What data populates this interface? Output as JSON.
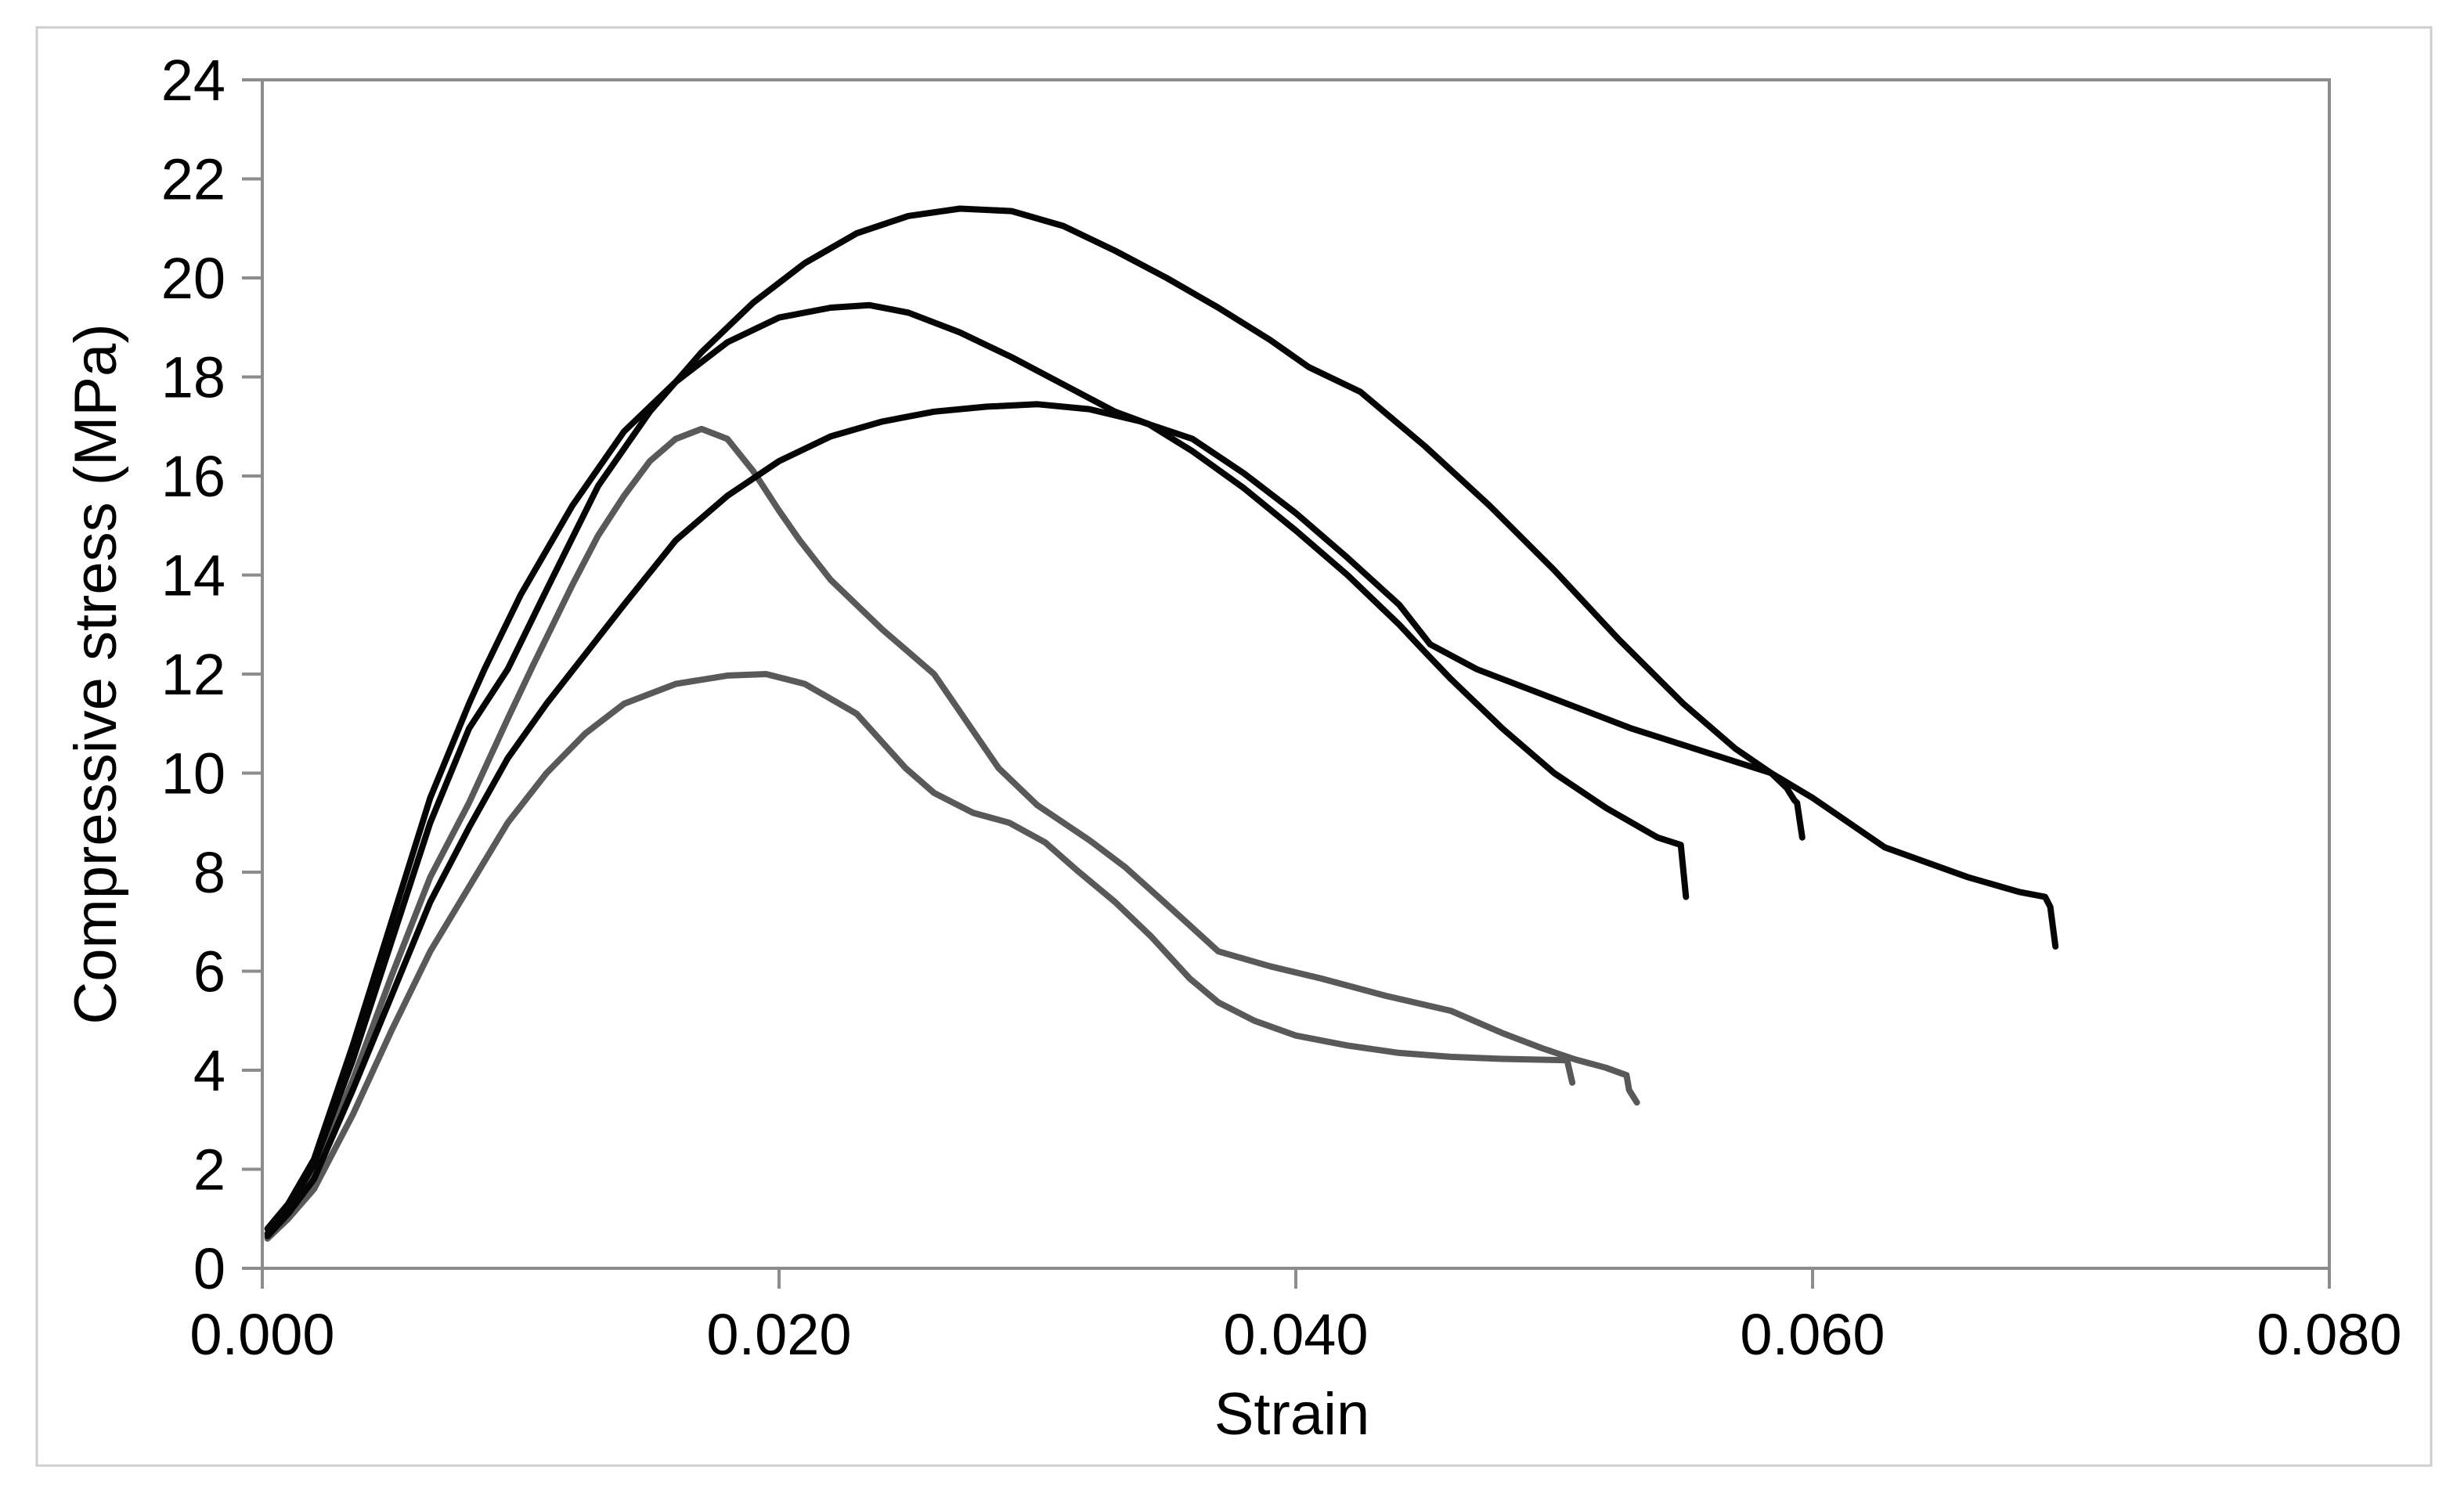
{
  "figure": {
    "background": "#ffffff",
    "border_color": "#cfcfcf",
    "axis_color": "#8c8c8c",
    "tick_color": "#8c8c8c",
    "text_color": "#000000",
    "series_black_color": "#050505",
    "series_gray_color": "#595959"
  },
  "chart_data": {
    "type": "line",
    "title": "",
    "xlabel": "Strain",
    "ylabel": "Compressive stress (MPa)",
    "xlim": [
      0.0,
      0.08
    ],
    "ylim": [
      0,
      24
    ],
    "grid": false,
    "legend": "none",
    "x_ticks": [
      {
        "v": 0.0,
        "label": "0.000"
      },
      {
        "v": 0.02,
        "label": "0.020"
      },
      {
        "v": 0.04,
        "label": "0.040"
      },
      {
        "v": 0.06,
        "label": "0.060"
      },
      {
        "v": 0.08,
        "label": "0.080"
      }
    ],
    "y_ticks": [
      {
        "v": 0,
        "label": "0"
      },
      {
        "v": 2,
        "label": "2"
      },
      {
        "v": 4,
        "label": "4"
      },
      {
        "v": 6,
        "label": "6"
      },
      {
        "v": 8,
        "label": "8"
      },
      {
        "v": 10,
        "label": "10"
      },
      {
        "v": 12,
        "label": "12"
      },
      {
        "v": 14,
        "label": "14"
      },
      {
        "v": 16,
        "label": "16"
      },
      {
        "v": 18,
        "label": "18"
      },
      {
        "v": 20,
        "label": "20"
      },
      {
        "v": 22,
        "label": "22"
      },
      {
        "v": 24,
        "label": "24"
      }
    ],
    "series": [
      {
        "id": "gray-1",
        "label": "gray curve (peak 16.9 MPa)",
        "color": "#595959",
        "points": [
          [
            0.0002,
            0.7
          ],
          [
            0.001,
            1.1
          ],
          [
            0.002,
            1.9
          ],
          [
            0.0035,
            3.8
          ],
          [
            0.005,
            5.9
          ],
          [
            0.0065,
            7.9
          ],
          [
            0.008,
            9.4
          ],
          [
            0.0095,
            11.1
          ],
          [
            0.0105,
            12.2
          ],
          [
            0.012,
            13.8
          ],
          [
            0.013,
            14.8
          ],
          [
            0.014,
            15.6
          ],
          [
            0.015,
            16.3
          ],
          [
            0.016,
            16.75
          ],
          [
            0.017,
            16.95
          ],
          [
            0.018,
            16.75
          ],
          [
            0.019,
            16.1
          ],
          [
            0.02,
            15.3
          ],
          [
            0.0208,
            14.7
          ],
          [
            0.022,
            13.9
          ],
          [
            0.024,
            12.9
          ],
          [
            0.026,
            12.0
          ],
          [
            0.0285,
            10.1
          ],
          [
            0.03,
            9.35
          ],
          [
            0.032,
            8.65
          ],
          [
            0.0334,
            8.1
          ],
          [
            0.035,
            7.35
          ],
          [
            0.037,
            6.4
          ],
          [
            0.039,
            6.1
          ],
          [
            0.041,
            5.85
          ],
          [
            0.0435,
            5.5
          ],
          [
            0.046,
            5.2
          ],
          [
            0.048,
            4.75
          ],
          [
            0.0495,
            4.45
          ],
          [
            0.0508,
            4.22
          ],
          [
            0.052,
            4.05
          ],
          [
            0.0528,
            3.9
          ],
          [
            0.0529,
            3.6
          ],
          [
            0.0532,
            3.35
          ]
        ]
      },
      {
        "id": "gray-2",
        "label": "gray curve (peak 12.0 MPa)",
        "color": "#595959",
        "points": [
          [
            0.0002,
            0.6
          ],
          [
            0.001,
            1.0
          ],
          [
            0.002,
            1.6
          ],
          [
            0.0035,
            3.1
          ],
          [
            0.005,
            4.8
          ],
          [
            0.0065,
            6.4
          ],
          [
            0.008,
            7.7
          ],
          [
            0.0095,
            9.0
          ],
          [
            0.011,
            10.0
          ],
          [
            0.0125,
            10.8
          ],
          [
            0.014,
            11.4
          ],
          [
            0.016,
            11.8
          ],
          [
            0.018,
            11.97
          ],
          [
            0.0195,
            12.0
          ],
          [
            0.021,
            11.8
          ],
          [
            0.023,
            11.2
          ],
          [
            0.0249,
            10.1
          ],
          [
            0.026,
            9.6
          ],
          [
            0.0275,
            9.2
          ],
          [
            0.0289,
            9.0
          ],
          [
            0.0303,
            8.6
          ],
          [
            0.0315,
            8.05
          ],
          [
            0.033,
            7.4
          ],
          [
            0.0344,
            6.7
          ],
          [
            0.0359,
            5.85
          ],
          [
            0.037,
            5.37
          ],
          [
            0.0384,
            5.0
          ],
          [
            0.04,
            4.7
          ],
          [
            0.042,
            4.5
          ],
          [
            0.044,
            4.35
          ],
          [
            0.046,
            4.27
          ],
          [
            0.048,
            4.23
          ],
          [
            0.0505,
            4.2
          ],
          [
            0.0507,
            3.75
          ]
        ]
      },
      {
        "id": "black-3",
        "label": "black curve (peak 17.4 MPa)",
        "color": "#050505",
        "points": [
          [
            0.0002,
            0.65
          ],
          [
            0.001,
            1.1
          ],
          [
            0.002,
            1.8
          ],
          [
            0.0035,
            3.6
          ],
          [
            0.005,
            5.5
          ],
          [
            0.0065,
            7.4
          ],
          [
            0.008,
            8.9
          ],
          [
            0.0095,
            10.3
          ],
          [
            0.011,
            11.4
          ],
          [
            0.0125,
            12.4
          ],
          [
            0.014,
            13.4
          ],
          [
            0.016,
            14.7
          ],
          [
            0.018,
            15.6
          ],
          [
            0.02,
            16.3
          ],
          [
            0.022,
            16.8
          ],
          [
            0.024,
            17.1
          ],
          [
            0.026,
            17.3
          ],
          [
            0.028,
            17.4
          ],
          [
            0.03,
            17.45
          ],
          [
            0.032,
            17.35
          ],
          [
            0.034,
            17.1
          ],
          [
            0.036,
            16.75
          ],
          [
            0.038,
            16.05
          ],
          [
            0.04,
            15.25
          ],
          [
            0.042,
            14.35
          ],
          [
            0.044,
            13.4
          ],
          [
            0.0452,
            12.6
          ],
          [
            0.047,
            12.1
          ],
          [
            0.05,
            11.5
          ],
          [
            0.053,
            10.9
          ],
          [
            0.056,
            10.4
          ],
          [
            0.0584,
            10.0
          ],
          [
            0.06,
            9.5
          ],
          [
            0.0628,
            8.5
          ],
          [
            0.066,
            7.9
          ],
          [
            0.068,
            7.6
          ],
          [
            0.069,
            7.5
          ],
          [
            0.0692,
            7.3
          ],
          [
            0.0694,
            6.5
          ]
        ]
      },
      {
        "id": "black-2",
        "label": "black curve (peak 19.4 MPa)",
        "color": "#050505",
        "points": [
          [
            0.0002,
            0.8
          ],
          [
            0.001,
            1.3
          ],
          [
            0.002,
            2.2
          ],
          [
            0.0035,
            4.5
          ],
          [
            0.005,
            7.0
          ],
          [
            0.0065,
            9.5
          ],
          [
            0.008,
            11.4
          ],
          [
            0.0086,
            12.1
          ],
          [
            0.01,
            13.6
          ],
          [
            0.012,
            15.4
          ],
          [
            0.014,
            16.9
          ],
          [
            0.016,
            17.9
          ],
          [
            0.018,
            18.7
          ],
          [
            0.02,
            19.2
          ],
          [
            0.022,
            19.4
          ],
          [
            0.0235,
            19.45
          ],
          [
            0.025,
            19.3
          ],
          [
            0.027,
            18.9
          ],
          [
            0.029,
            18.4
          ],
          [
            0.031,
            17.85
          ],
          [
            0.033,
            17.3
          ],
          [
            0.0343,
            17.05
          ],
          [
            0.036,
            16.5
          ],
          [
            0.038,
            15.75
          ],
          [
            0.04,
            14.9
          ],
          [
            0.042,
            14.0
          ],
          [
            0.044,
            13.0
          ],
          [
            0.0449,
            12.5
          ],
          [
            0.046,
            11.9
          ],
          [
            0.048,
            10.9
          ],
          [
            0.05,
            10.0
          ],
          [
            0.052,
            9.3
          ],
          [
            0.054,
            8.7
          ],
          [
            0.0549,
            8.55
          ],
          [
            0.0551,
            7.5
          ]
        ]
      },
      {
        "id": "black-1",
        "label": "black curve (peak 21.4 MPa)",
        "color": "#050505",
        "points": [
          [
            0.0002,
            0.7
          ],
          [
            0.001,
            1.2
          ],
          [
            0.002,
            2.1
          ],
          [
            0.0035,
            4.2
          ],
          [
            0.005,
            6.6
          ],
          [
            0.0065,
            9.0
          ],
          [
            0.008,
            10.9
          ],
          [
            0.0095,
            12.1
          ],
          [
            0.011,
            13.7
          ],
          [
            0.013,
            15.8
          ],
          [
            0.015,
            17.3
          ],
          [
            0.017,
            18.5
          ],
          [
            0.019,
            19.5
          ],
          [
            0.021,
            20.3
          ],
          [
            0.023,
            20.9
          ],
          [
            0.025,
            21.25
          ],
          [
            0.027,
            21.4
          ],
          [
            0.029,
            21.35
          ],
          [
            0.031,
            21.05
          ],
          [
            0.033,
            20.55
          ],
          [
            0.035,
            20.0
          ],
          [
            0.037,
            19.4
          ],
          [
            0.039,
            18.75
          ],
          [
            0.0405,
            18.2
          ],
          [
            0.0425,
            17.7
          ],
          [
            0.045,
            16.6
          ],
          [
            0.0475,
            15.4
          ],
          [
            0.05,
            14.1
          ],
          [
            0.0525,
            12.7
          ],
          [
            0.055,
            11.4
          ],
          [
            0.057,
            10.5
          ],
          [
            0.0584,
            10.0
          ],
          [
            0.059,
            9.7
          ],
          [
            0.0593,
            9.45
          ],
          [
            0.0594,
            9.4
          ],
          [
            0.0596,
            8.7
          ]
        ]
      }
    ]
  }
}
